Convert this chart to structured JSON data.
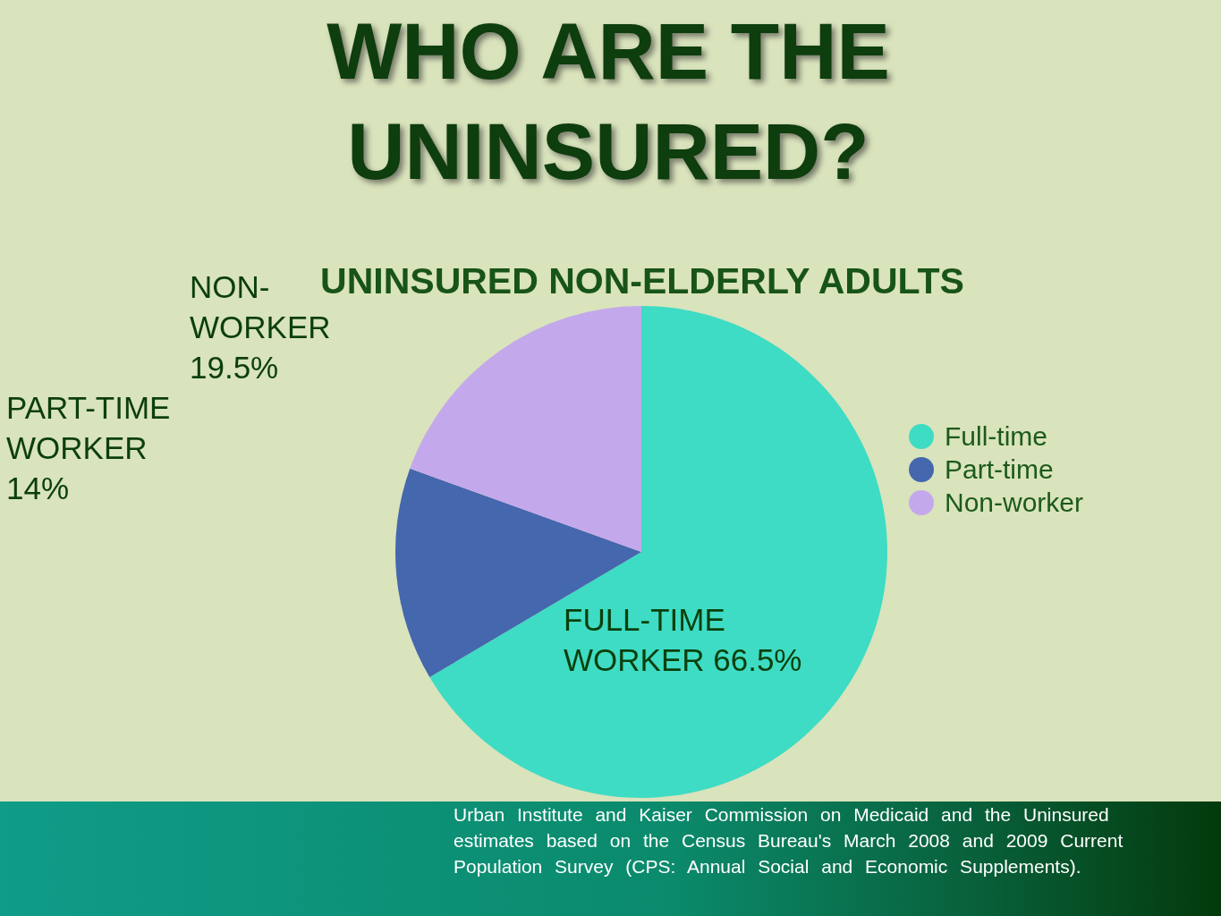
{
  "chart_data": {
    "type": "pie",
    "title": "WHO ARE THE UNINSURED?",
    "subtitle": "UNINSURED NON-ELDERLY ADULTS",
    "categories": [
      "Full-time",
      "Part-time",
      "Non-worker"
    ],
    "values": [
      66.5,
      14,
      19.5
    ],
    "colors": [
      "#3edcc4",
      "#4467ae",
      "#c4a8ec"
    ],
    "value_labels": [
      "FULL-TIME WORKER 66.5%",
      "PART-TIME WORKER 14%",
      "NON-WORKER 19.5%"
    ],
    "legend": "right",
    "annotations": [
      "Urban Institute and Kaiser Commission on Medicaid and the Uninsured estimates based on the Census Bureau's March 2008 and 2009 Current Population Survey (CPS: Annual Social and Economic Supplements)."
    ]
  }
}
